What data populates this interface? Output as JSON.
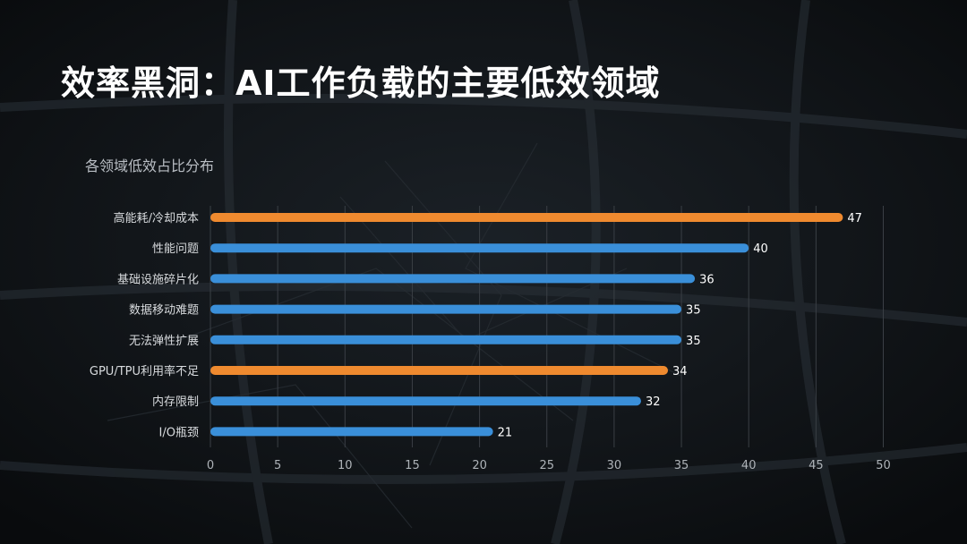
{
  "slide": {
    "title": "效率黑洞：AI工作负载的主要低效领域"
  },
  "colors": {
    "background": "#101418",
    "highlight_bar": "#ef8a2f",
    "normal_bar": "#3a8fd9",
    "grid": "#3a3f45",
    "label_text": "#d8dbde"
  },
  "chart_data": {
    "type": "bar",
    "orientation": "horizontal",
    "title": "各领域低效占比分布",
    "categories": [
      "高能耗/冷却成本",
      "性能问题",
      "基础设施碎片化",
      "数据移动难题",
      "无法弹性扩展",
      "GPU/TPU利用率不足",
      "内存限制",
      "I/O瓶颈"
    ],
    "values": [
      47,
      40,
      36,
      35,
      35,
      34,
      32,
      21
    ],
    "highlighted": [
      true,
      false,
      false,
      false,
      false,
      true,
      false,
      false
    ],
    "xlim": [
      0,
      50
    ],
    "xticks": [
      0,
      5,
      10,
      15,
      20,
      25,
      30,
      35,
      40,
      45,
      50
    ],
    "grid": "vertical",
    "legend": "none",
    "data_labels": true
  }
}
